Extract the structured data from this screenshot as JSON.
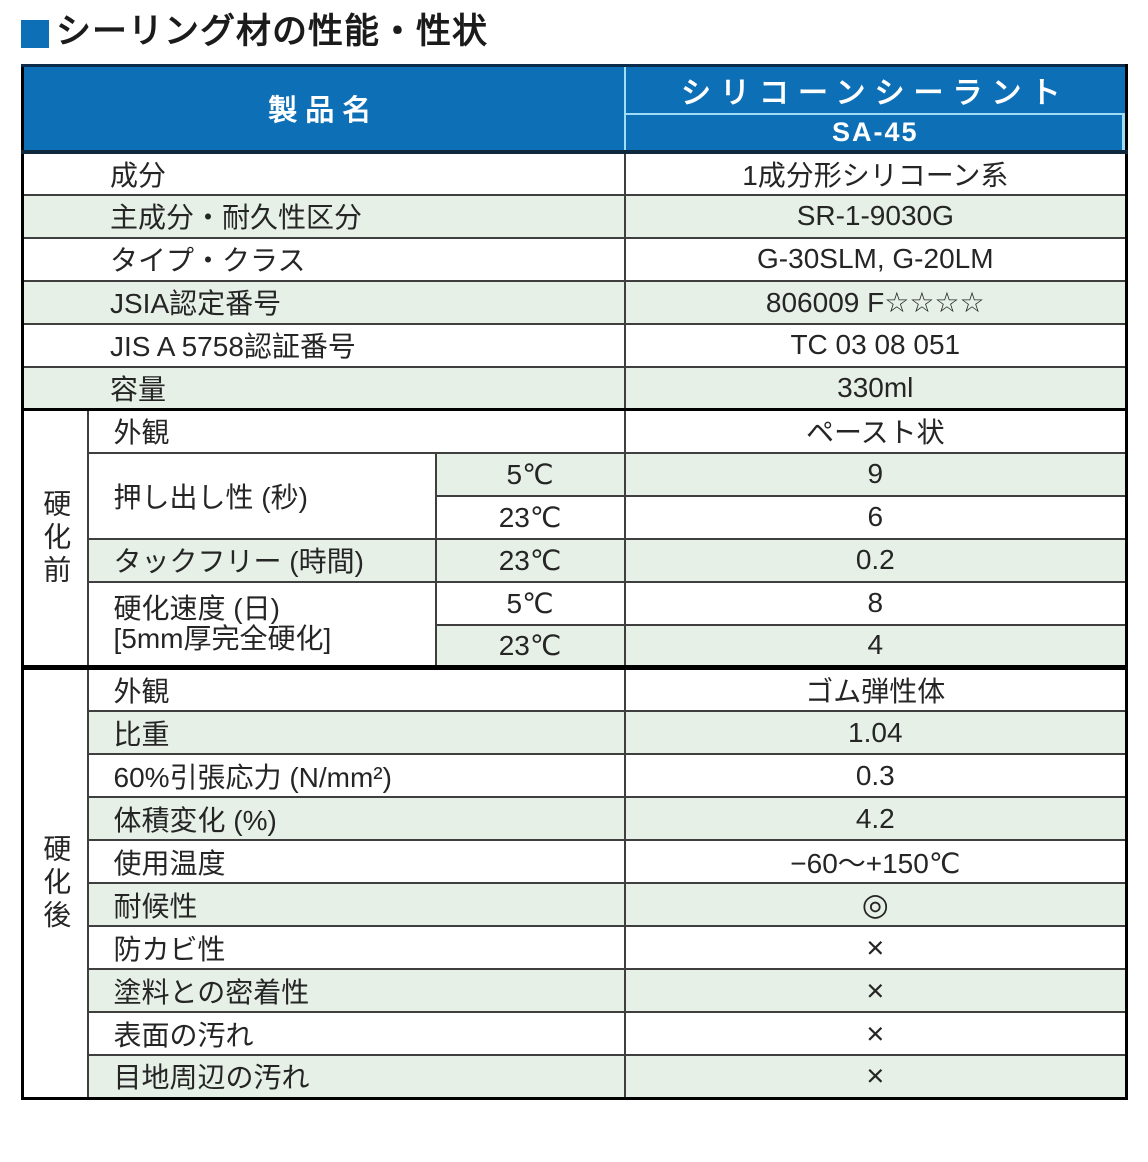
{
  "title": {
    "text": "シーリング材の性能・性状"
  },
  "table": {
    "header": {
      "product_label": "製品名",
      "product_name": "シリコーンシーラント",
      "model": "SA-45"
    },
    "groups": {
      "before": "硬化前",
      "after": "硬化後"
    },
    "rows": [
      {
        "label": "成分",
        "value": "1成分形シリコーン系"
      },
      {
        "label": "主成分・耐久性区分",
        "value": "SR-1-9030G"
      },
      {
        "label": "タイプ・クラス",
        "value": "G-30SLM, G-20LM"
      },
      {
        "label": "JSIA認定番号",
        "value": "806009 F☆☆☆☆"
      },
      {
        "label": "JIS A 5758認証番号",
        "value": "TC 03 08 051"
      },
      {
        "label": "容量",
        "value": "330ml"
      },
      {
        "label": "外観",
        "value": "ペースト状"
      },
      {
        "label": "押し出し性 (秒)",
        "temp": "5℃",
        "value": "9"
      },
      {
        "temp": "23℃",
        "value": "6"
      },
      {
        "label": "タックフリー (時間)",
        "temp": "23℃",
        "value": "0.2"
      },
      {
        "label": "硬化速度 (日)",
        "label2": "[5mm厚完全硬化]",
        "temp": "5℃",
        "value": "8"
      },
      {
        "temp": "23℃",
        "value": "4"
      },
      {
        "label": "外観",
        "value": "ゴム弾性体"
      },
      {
        "label": "比重",
        "value": "1.04"
      },
      {
        "label": "60%引張応力 (N/mm²)",
        "value": "0.3"
      },
      {
        "label": "体積変化 (%)",
        "value": "4.2"
      },
      {
        "label": "使用温度",
        "value": "−60〜+150℃"
      },
      {
        "label": "耐候性",
        "value": "◎"
      },
      {
        "label": "防カビ性",
        "value": "×"
      },
      {
        "label": "塗料との密着性",
        "value": "×"
      },
      {
        "label": "表面の汚れ",
        "value": "×"
      },
      {
        "label": "目地周辺の汚れ",
        "value": "×"
      }
    ],
    "colors": {
      "header_blue": "#0d6fb6",
      "row_green": "#e6f0e7",
      "header_divider_cyan": "#9fdcf5"
    }
  }
}
